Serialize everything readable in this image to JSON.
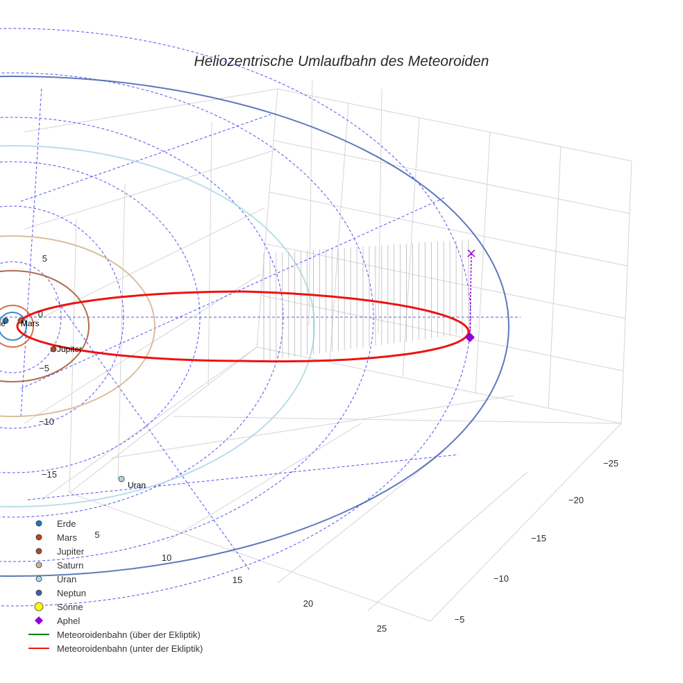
{
  "chart_data": {
    "type": "scatter3d",
    "title": "Heliozentrische Umlaufbahn des Meteoroiden",
    "axes": {
      "x_ticks": [
        "5",
        "10",
        "15",
        "20",
        "25"
      ],
      "y_ticks": [
        "−25",
        "−20",
        "−15",
        "−10",
        "−5"
      ],
      "z_ticks": [
        "5",
        "0",
        "−5",
        "−10",
        "−15"
      ]
    },
    "planets": [
      {
        "name": "Erde",
        "color": "#1f77b4",
        "label": "Erde",
        "orbit_radius_au": 1.0
      },
      {
        "name": "Mars",
        "color": "#d2522a",
        "label": "Mars",
        "orbit_radius_au": 1.52
      },
      {
        "name": "Jupiter",
        "color": "#a0522d",
        "label": "Jupiter",
        "orbit_radius_au": 5.2
      },
      {
        "name": "Saturn",
        "color": "#d2b48c",
        "label": "",
        "orbit_radius_au": 9.5
      },
      {
        "name": "Uran",
        "color": "#add8e6",
        "label": "Uran",
        "orbit_radius_au": 19.2
      },
      {
        "name": "Neptun",
        "color": "#4060b0",
        "label": "",
        "orbit_radius_au": 30.1
      }
    ],
    "sun": {
      "name": "Sonne",
      "color": "#ffff00"
    },
    "aphel": {
      "name": "Aphel",
      "color": "#9400d3"
    },
    "meteoroid_orbit": {
      "above_label": "Meteoroidenbahn (über der Ekliptik)",
      "above_color": "#008000",
      "below_label": "Meteoroidenbahn (unter der Ekliptik)",
      "below_color": "#ee1111"
    },
    "legend": [
      {
        "label": "Erde",
        "symbol": "circle",
        "color": "#1f77b4"
      },
      {
        "label": "Mars",
        "symbol": "circle",
        "color": "#c1440e"
      },
      {
        "label": "Jupiter",
        "symbol": "circle",
        "color": "#a0522d"
      },
      {
        "label": "Saturn",
        "symbol": "circle",
        "color": "#d2b48c"
      },
      {
        "label": "Uran",
        "symbol": "circle",
        "color": "#add8e6"
      },
      {
        "label": "Neptun",
        "symbol": "circle",
        "color": "#4060b0"
      },
      {
        "label": "Sonne",
        "symbol": "big-circle",
        "color": "#ffff00"
      },
      {
        "label": "Aphel",
        "symbol": "diamond",
        "color": "#9400d3"
      },
      {
        "label": "Meteoroidenbahn (über der Ekliptik)",
        "symbol": "line",
        "color": "#008000"
      },
      {
        "label": "Meteoroidenbahn (unter der Ekliptik)",
        "symbol": "line",
        "color": "#ee1111"
      }
    ],
    "legend_position": "bottom-left"
  }
}
